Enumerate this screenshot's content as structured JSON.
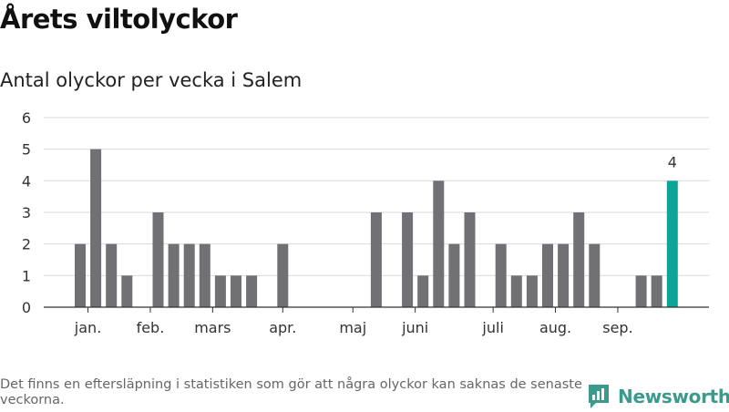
{
  "header": {
    "title": "Årets viltolyckor",
    "subtitle": "Antal olyckor per vecka i Salem"
  },
  "footer": {
    "note": "Det finns en eftersläpning i statistiken som gör att några olyckor kan saknas de senaste veckorna.",
    "brand": "Newsworthy",
    "brand_icon": "newsworthy-logo-icon"
  },
  "colors": {
    "bar": "#707075",
    "highlight": "#0fa596",
    "grid": "#d9d9d9",
    "axis": "#333333",
    "brand": "#3a9a8c"
  },
  "chart_data": {
    "type": "bar",
    "week_values": [
      2,
      5,
      2,
      1,
      0,
      3,
      2,
      2,
      2,
      1,
      1,
      1,
      0,
      2,
      0,
      0,
      0,
      0,
      0,
      3,
      0,
      3,
      1,
      4,
      2,
      3,
      0,
      2,
      1,
      1,
      2,
      2,
      3,
      2,
      0,
      0,
      1,
      1,
      4
    ],
    "highlight_index": 38,
    "highlight_label": "4",
    "month_labels": [
      {
        "label": "jan.",
        "week": 0.5
      },
      {
        "label": "feb.",
        "week": 4.5
      },
      {
        "label": "mars",
        "week": 8.5
      },
      {
        "label": "apr.",
        "week": 13.0
      },
      {
        "label": "maj",
        "week": 17.5
      },
      {
        "label": "juni",
        "week": 21.5
      },
      {
        "label": "juli",
        "week": 26.5
      },
      {
        "label": "aug.",
        "week": 30.5
      },
      {
        "label": "sep.",
        "week": 34.5
      }
    ],
    "ylim": [
      0,
      6
    ],
    "yticks": [
      0,
      1,
      2,
      3,
      4,
      5,
      6
    ],
    "grid": true,
    "xlabel": "",
    "ylabel": ""
  }
}
